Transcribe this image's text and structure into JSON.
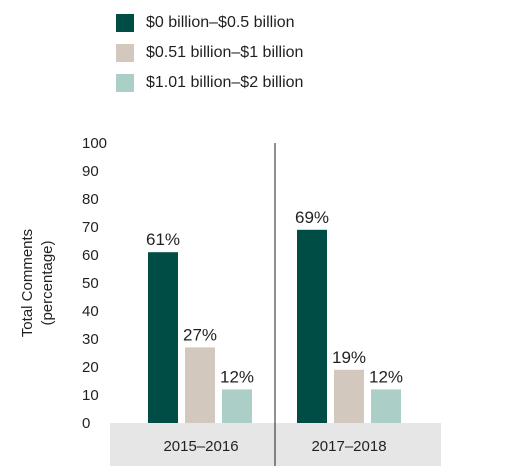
{
  "chart_data": {
    "type": "bar",
    "categories": [
      "2015–2016",
      "2017–2018"
    ],
    "series": [
      {
        "name": "$0 billion–$0.5 billion",
        "color": "#004d45",
        "values": [
          61,
          69
        ],
        "labels": [
          "61%",
          "69%"
        ]
      },
      {
        "name": "$0.51 billion–$1 billion",
        "color": "#d3c8bd",
        "values": [
          27,
          19
        ],
        "labels": [
          "27%",
          "19%"
        ]
      },
      {
        "name": "$1.01 billion–$2 billion",
        "color": "#abcec7",
        "values": [
          12,
          12
        ],
        "labels": [
          "12%",
          "12%"
        ]
      }
    ],
    "ylabel_lines": [
      "Total Comments",
      "(percentage)"
    ],
    "ylim": [
      0,
      100
    ],
    "yticks": [
      "0",
      "10",
      "20",
      "30",
      "40",
      "50",
      "60",
      "70",
      "80",
      "90",
      "100"
    ],
    "legend_position": "top-left",
    "grid": false
  }
}
